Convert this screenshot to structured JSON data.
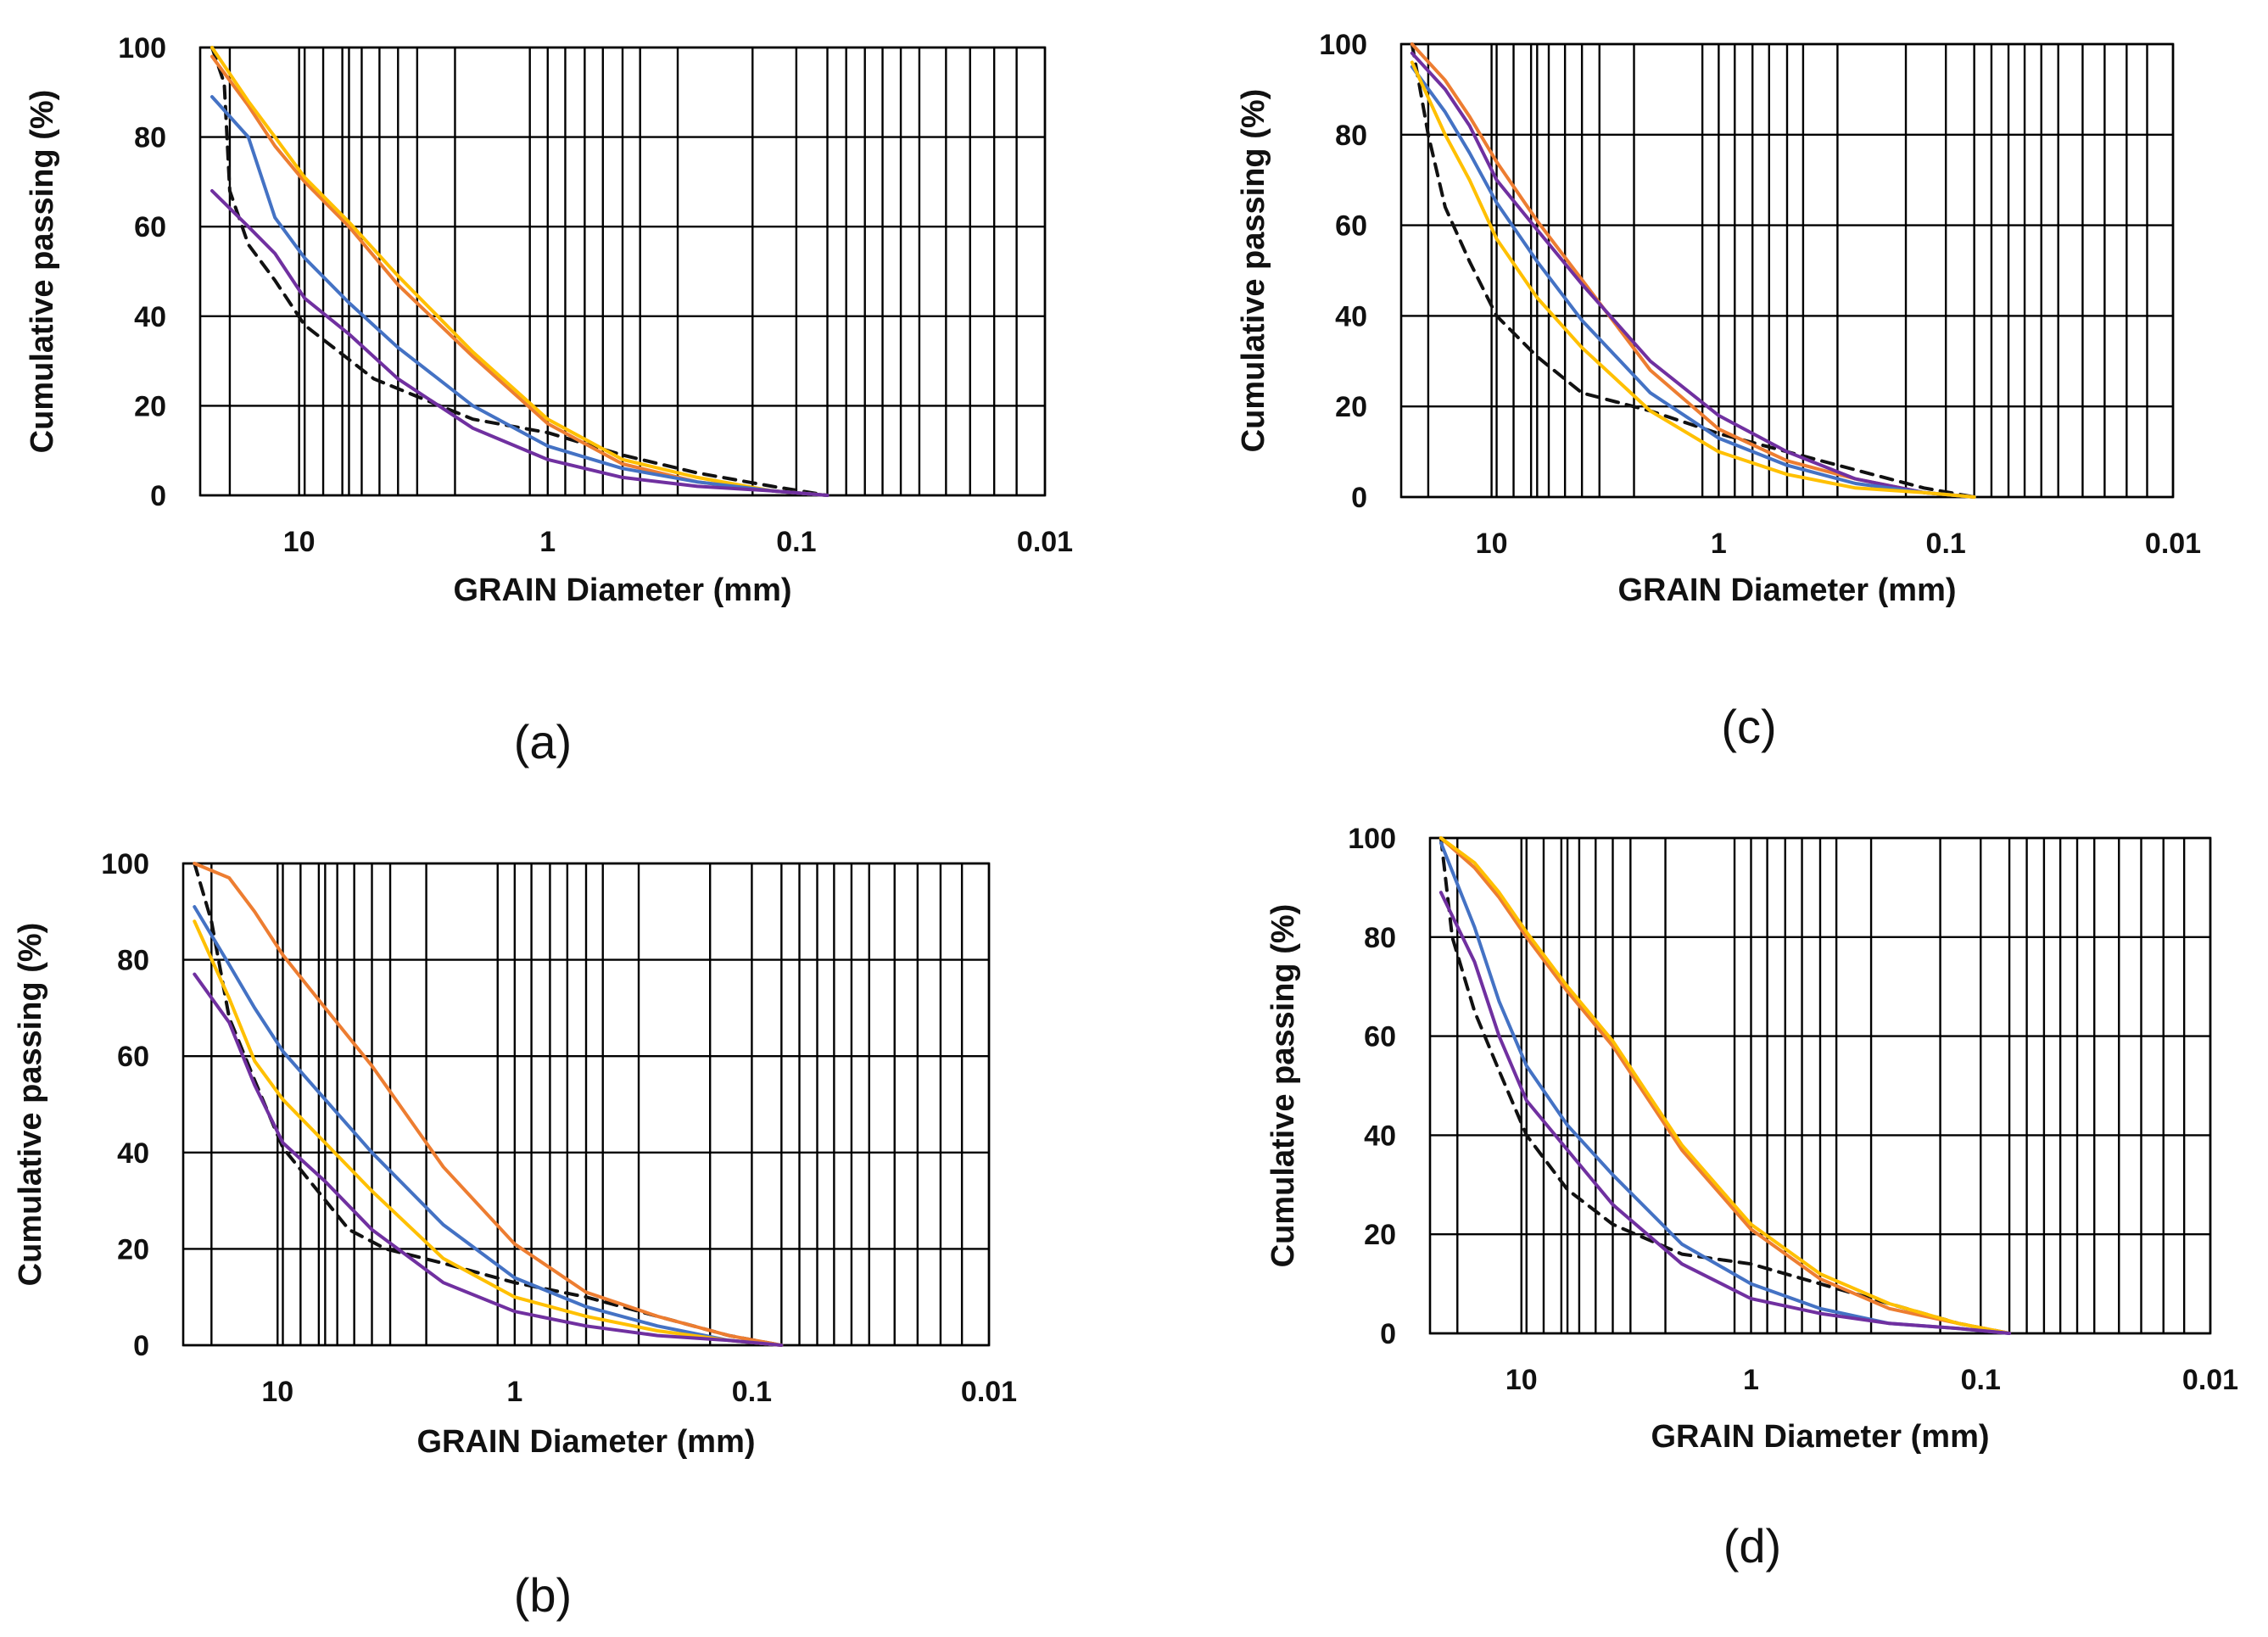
{
  "figure": {
    "chart_data": [
      {
        "type": "line",
        "panel_label": "(a)",
        "xlabel": "GRAIN Diameter (mm)",
        "ylabel": "Cumulative passing (%)",
        "xscale": "log",
        "xaxis_reversed": true,
        "xlim": [
          25,
          0.01
        ],
        "ylim": [
          0,
          100
        ],
        "xticks": [
          10,
          1,
          0.1,
          0.01
        ],
        "xtick_labels": [
          "10",
          "1",
          "0.1",
          "0.01"
        ],
        "yticks": [
          0,
          20,
          40,
          60,
          80,
          100
        ],
        "ytick_labels": [
          "0",
          "20",
          "40",
          "60",
          "80",
          "100"
        ],
        "grid": true,
        "series": [
          {
            "name": "dashed-black",
            "color": "#111111",
            "style": "dashed",
            "x": [
              22.4,
              20,
              19,
              16,
              12.5,
              9.5,
              5,
              2,
              1,
              0.5,
              0.25,
              0.125,
              0.075
            ],
            "y": [
              100,
              92,
              68,
              56,
              48,
              38,
              26,
              17,
              14,
              9,
              5,
              2,
              0
            ]
          },
          {
            "name": "orange",
            "color": "#ED7D31",
            "style": "solid",
            "x": [
              22.4,
              16,
              12.5,
              9.5,
              6.3,
              4,
              2,
              1,
              0.5,
              0.25,
              0.125,
              0.075
            ],
            "y": [
              98,
              87,
              78,
              70,
              60,
              47,
              31,
              16,
              7,
              3,
              1,
              0
            ]
          },
          {
            "name": "gold",
            "color": "#FFC000",
            "style": "solid",
            "x": [
              22.4,
              16,
              12.5,
              9.5,
              6.3,
              4,
              2,
              1,
              0.5,
              0.25,
              0.125,
              0.075
            ],
            "y": [
              100,
              88,
              80,
              71,
              61,
              49,
              32,
              17,
              8,
              4,
              1,
              0
            ]
          },
          {
            "name": "blue",
            "color": "#4472C4",
            "style": "solid",
            "x": [
              22.4,
              16,
              12.5,
              9.5,
              6.3,
              4,
              2,
              1,
              0.5,
              0.25,
              0.125,
              0.075
            ],
            "y": [
              89,
              80,
              62,
              53,
              43,
              33,
              20,
              11,
              6,
              3,
              1,
              0
            ]
          },
          {
            "name": "purple",
            "color": "#7030A0",
            "style": "solid",
            "x": [
              22.4,
              16,
              12.5,
              9.5,
              6.3,
              4,
              2,
              1,
              0.5,
              0.25,
              0.125,
              0.075
            ],
            "y": [
              68,
              60,
              54,
              44,
              36,
              26,
              15,
              8,
              4,
              2,
              1,
              0
            ]
          }
        ]
      },
      {
        "type": "line",
        "panel_label": "(b)",
        "xlabel": "GRAIN Diameter (mm)",
        "ylabel": "Cumulative passing (%)",
        "xscale": "log",
        "xaxis_reversed": true,
        "xlim": [
          25,
          0.01
        ],
        "ylim": [
          0,
          100
        ],
        "xticks": [
          10,
          1,
          0.1,
          0.01
        ],
        "xtick_labels": [
          "10",
          "1",
          "0.1",
          "0.01"
        ],
        "yticks": [
          0,
          20,
          40,
          60,
          80,
          100
        ],
        "ytick_labels": [
          "0",
          "20",
          "40",
          "60",
          "80",
          "100"
        ],
        "grid": true,
        "series": [
          {
            "name": "dashed-black",
            "color": "#111111",
            "style": "dashed",
            "x": [
              22.4,
              19,
              16,
              12.5,
              9.5,
              5,
              3.5,
              2,
              1,
              0.5,
              0.25,
              0.125,
              0.075
            ],
            "y": [
              100,
              88,
              68,
              55,
              41,
              24,
              20,
              17,
              13,
              10,
              6,
              2,
              0
            ]
          },
          {
            "name": "orange",
            "color": "#ED7D31",
            "style": "solid",
            "x": [
              22.4,
              16,
              12.5,
              9.5,
              6.3,
              4,
              2,
              1,
              0.5,
              0.25,
              0.125,
              0.075
            ],
            "y": [
              100,
              97,
              90,
              81,
              70,
              58,
              37,
              21,
              11,
              6,
              2,
              0
            ]
          },
          {
            "name": "blue",
            "color": "#4472C4",
            "style": "solid",
            "x": [
              22.4,
              16,
              12.5,
              9.5,
              6.3,
              4,
              2,
              1,
              0.5,
              0.25,
              0.125,
              0.075
            ],
            "y": [
              91,
              79,
              70,
              61,
              51,
              40,
              25,
              14,
              8,
              4,
              1,
              0
            ]
          },
          {
            "name": "gold",
            "color": "#FFC000",
            "style": "solid",
            "x": [
              22.4,
              16,
              12.5,
              9.5,
              6.3,
              4,
              2,
              1,
              0.5,
              0.25,
              0.125,
              0.075
            ],
            "y": [
              88,
              72,
              59,
              51,
              42,
              32,
              18,
              10,
              6,
              3,
              1,
              0
            ]
          },
          {
            "name": "purple",
            "color": "#7030A0",
            "style": "solid",
            "x": [
              22.4,
              16,
              12.5,
              9.5,
              6.3,
              4,
              2,
              1,
              0.5,
              0.25,
              0.125,
              0.075
            ],
            "y": [
              77,
              67,
              54,
              42,
              34,
              24,
              13,
              7,
              4,
              2,
              1,
              0
            ]
          }
        ]
      },
      {
        "type": "line",
        "panel_label": "(c)",
        "xlabel": "GRAIN Diameter (mm)",
        "ylabel": "Cumulative passing (%)",
        "xscale": "log",
        "xaxis_reversed": true,
        "xlim": [
          25,
          0.01
        ],
        "ylim": [
          0,
          100
        ],
        "xticks": [
          10,
          1,
          0.1,
          0.01
        ],
        "xtick_labels": [
          "10",
          "1",
          "0.1",
          "0.01"
        ],
        "yticks": [
          0,
          20,
          40,
          60,
          80,
          100
        ],
        "ytick_labels": [
          "0",
          "20",
          "40",
          "60",
          "80",
          "100"
        ],
        "grid": true,
        "series": [
          {
            "name": "dashed-black",
            "color": "#111111",
            "style": "dashed",
            "x": [
              22.4,
              19,
              16,
              12.5,
              9.5,
              6.3,
              4,
              2,
              1,
              0.5,
              0.25,
              0.125,
              0.075
            ],
            "y": [
              100,
              80,
              64,
              52,
              40,
              31,
              23,
              19,
              14,
              10,
              6,
              2,
              0
            ]
          },
          {
            "name": "orange",
            "color": "#ED7D31",
            "style": "solid",
            "x": [
              22.4,
              16,
              12.5,
              9.5,
              6.3,
              4,
              2,
              1,
              0.5,
              0.25,
              0.125,
              0.075
            ],
            "y": [
              100,
              92,
              84,
              74,
              61,
              48,
              28,
              15,
              8,
              4,
              1,
              0
            ]
          },
          {
            "name": "purple",
            "color": "#7030A0",
            "style": "solid",
            "x": [
              22.4,
              16,
              12.5,
              9.5,
              6.3,
              4,
              2,
              1,
              0.5,
              0.25,
              0.125,
              0.075
            ],
            "y": [
              98,
              90,
              82,
              70,
              59,
              47,
              30,
              18,
              10,
              4,
              1,
              0
            ]
          },
          {
            "name": "blue",
            "color": "#4472C4",
            "style": "solid",
            "x": [
              22.4,
              16,
              12.5,
              9.5,
              6.3,
              4,
              2,
              1,
              0.5,
              0.25,
              0.125,
              0.075
            ],
            "y": [
              95,
              85,
              76,
              65,
              52,
              39,
              23,
              13,
              7,
              3,
              1,
              0
            ]
          },
          {
            "name": "gold",
            "color": "#FFC000",
            "style": "solid",
            "x": [
              22.4,
              16,
              12.5,
              9.5,
              6.3,
              4,
              2,
              1,
              0.5,
              0.25,
              0.125,
              0.075
            ],
            "y": [
              96,
              80,
              70,
              57,
              44,
              33,
              19,
              10,
              5,
              2,
              1,
              0
            ]
          }
        ]
      },
      {
        "type": "line",
        "panel_label": "(d)",
        "xlabel": "GRAIN Diameter (mm)",
        "ylabel": "Cumulative passing (%)",
        "xscale": "log",
        "xaxis_reversed": true,
        "xlim": [
          25,
          0.01
        ],
        "ylim": [
          0,
          100
        ],
        "xticks": [
          10,
          1,
          0.1,
          0.01
        ],
        "xtick_labels": [
          "10",
          "1",
          "0.1",
          "0.01"
        ],
        "yticks": [
          0,
          20,
          40,
          60,
          80,
          100
        ],
        "ytick_labels": [
          "0",
          "20",
          "40",
          "60",
          "80",
          "100"
        ],
        "grid": true,
        "series": [
          {
            "name": "dashed-black",
            "color": "#111111",
            "style": "dashed",
            "x": [
              22.4,
              20,
              16,
              12.5,
              9.5,
              6.3,
              4,
              2,
              1,
              0.5,
              0.25,
              0.125,
              0.075
            ],
            "y": [
              100,
              80,
              65,
              53,
              40,
              29,
              22,
              16,
              14,
              10,
              6,
              2,
              0
            ]
          },
          {
            "name": "orange",
            "color": "#ED7D31",
            "style": "solid",
            "x": [
              22.4,
              16,
              12.5,
              9.5,
              6.3,
              4,
              2,
              1,
              0.5,
              0.25,
              0.125,
              0.075
            ],
            "y": [
              100,
              94,
              88,
              80,
              69,
              58,
              37,
              21,
              11,
              5,
              2,
              0
            ]
          },
          {
            "name": "gold",
            "color": "#FFC000",
            "style": "solid",
            "x": [
              22.4,
              16,
              12.5,
              9.5,
              6.3,
              4,
              2,
              1,
              0.5,
              0.25,
              0.125,
              0.075
            ],
            "y": [
              100,
              95,
              89,
              81,
              70,
              59,
              38,
              22,
              12,
              6,
              2,
              0
            ]
          },
          {
            "name": "blue",
            "color": "#4472C4",
            "style": "solid",
            "x": [
              22.4,
              16,
              12.5,
              9.5,
              6.3,
              4,
              2,
              1,
              0.5,
              0.25,
              0.125,
              0.075
            ],
            "y": [
              99,
              82,
              67,
              54,
              42,
              32,
              18,
              10,
              5,
              2,
              1,
              0
            ]
          },
          {
            "name": "purple",
            "color": "#7030A0",
            "style": "solid",
            "x": [
              22.4,
              16,
              12.5,
              9.5,
              6.3,
              4,
              2,
              1,
              0.5,
              0.25,
              0.125,
              0.075
            ],
            "y": [
              89,
              75,
              60,
              47,
              37,
              26,
              14,
              7,
              4,
              2,
              1,
              0
            ]
          }
        ]
      }
    ]
  }
}
